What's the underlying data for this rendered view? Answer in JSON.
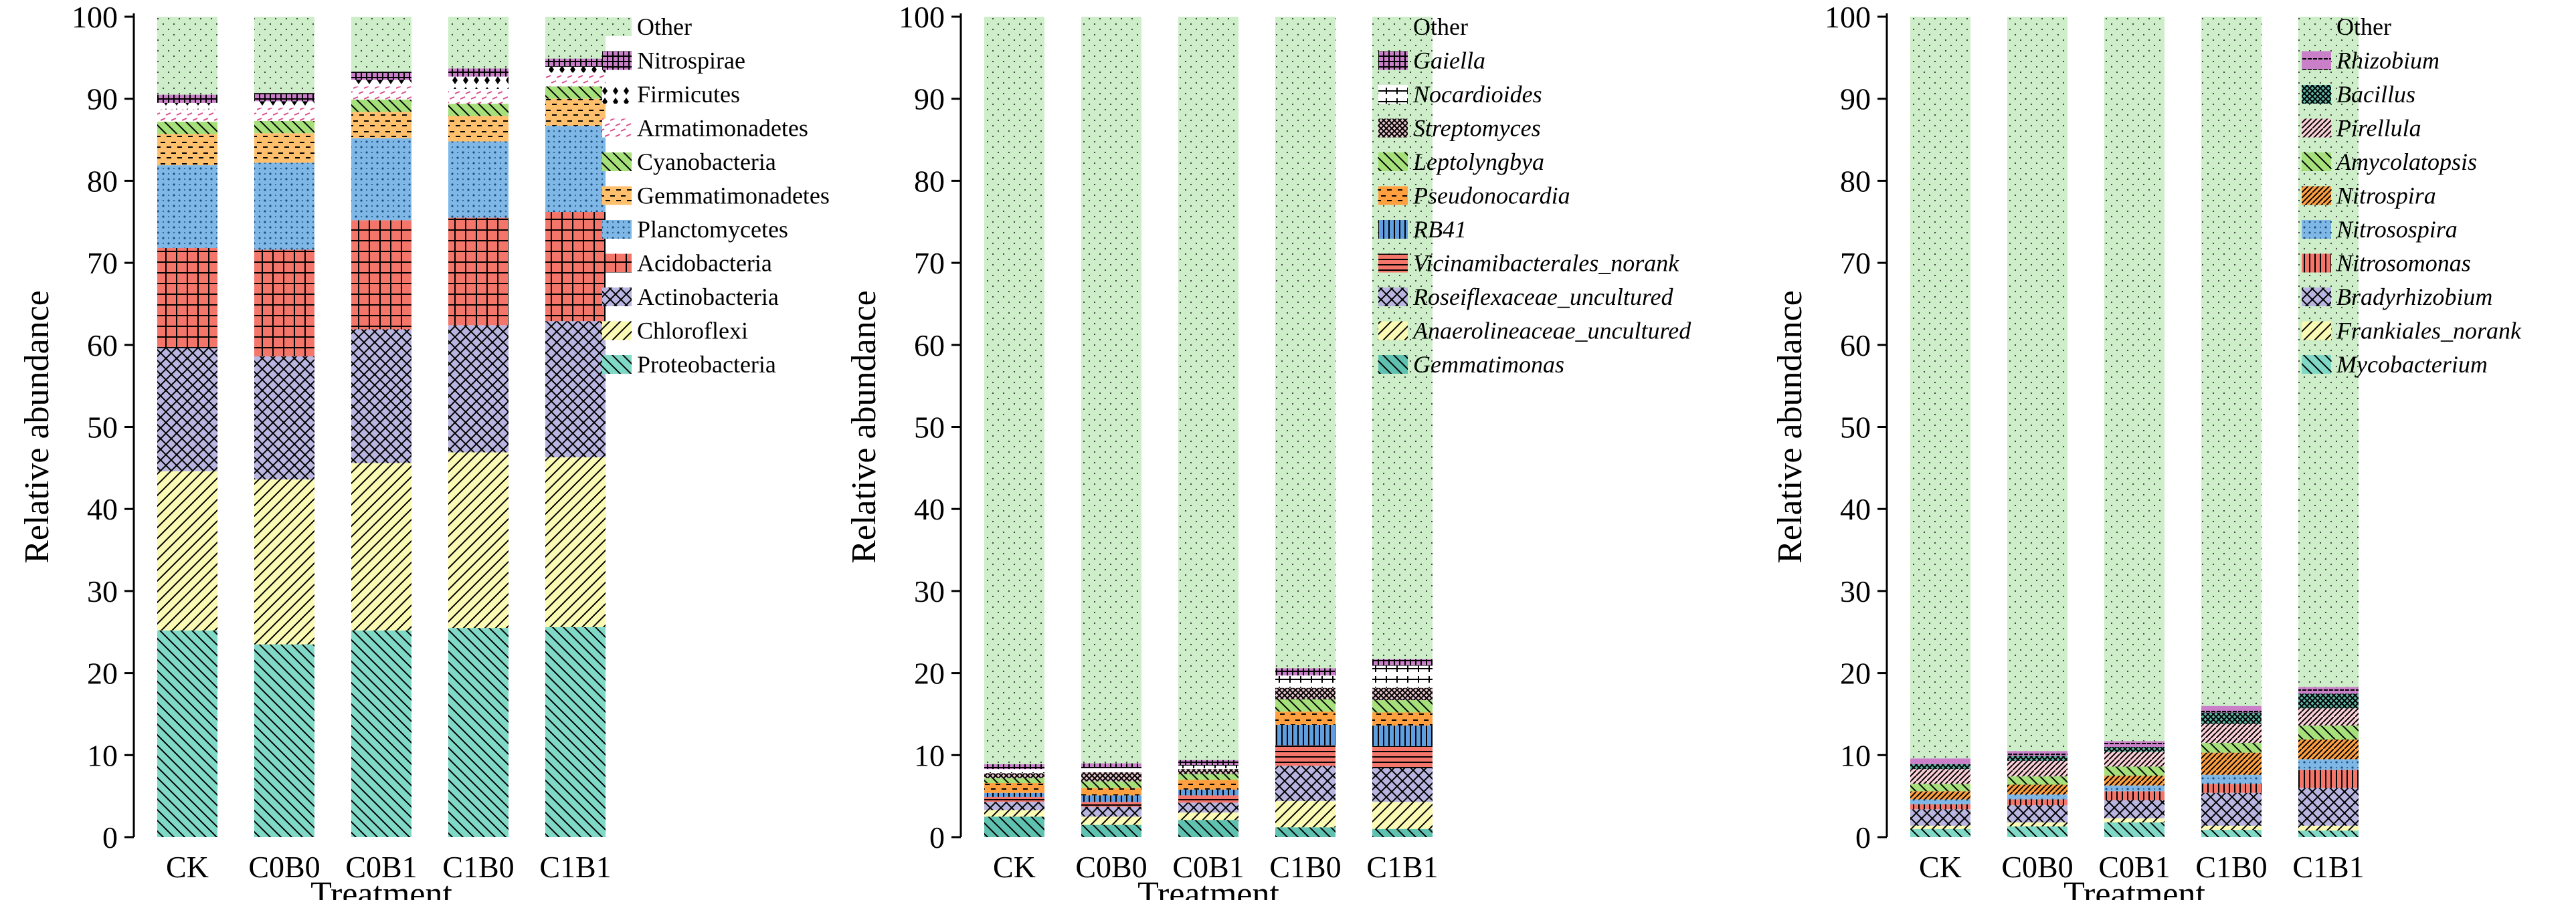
{
  "patterns": {
    "Other": {
      "fill": "#cdeec8",
      "pattern": "dots"
    },
    "Nitrospirae": {
      "fill": "#c980c9",
      "pattern": "grid-dense"
    },
    "Firmicutes": {
      "fill": "#ffffff",
      "pattern": "diamonds"
    },
    "Armatimonadetes": {
      "fill": "#ffffff",
      "pattern": "dash-pink"
    },
    "Cyanobacteria": {
      "fill": "#a6e07a",
      "pattern": "diag-left-dense"
    },
    "Gemmatimonadetes": {
      "fill": "#ffc06e",
      "pattern": "hdash"
    },
    "Planctomycetes": {
      "fill": "#7fb8e6",
      "pattern": "dots-dark"
    },
    "Acidobacteria": {
      "fill": "#f4756a",
      "pattern": "grid"
    },
    "Actinobacteria": {
      "fill": "#b8b5e0",
      "pattern": "crosshatch"
    },
    "Chloroflexi": {
      "fill": "#fbfab4",
      "pattern": "diag-right"
    },
    "Proteobacteria": {
      "fill": "#7fd9c6",
      "pattern": "diag-left"
    },
    "Gaiella": {
      "fill": "#c980c9",
      "pattern": "grid-dense"
    },
    "Nocardioides": {
      "fill": "#ffffff",
      "pattern": "hbar-cross"
    },
    "Streptomyces": {
      "fill": "#e8c4cc",
      "pattern": "crosshatch-dense"
    },
    "Leptolyngbya": {
      "fill": "#a6e07a",
      "pattern": "diag-left-dense"
    },
    "Pseudonocardia": {
      "fill": "#ffa040",
      "pattern": "hdash"
    },
    "RB41": {
      "fill": "#5f9ee0",
      "pattern": "vbars"
    },
    "Vicinamibacterales_norank": {
      "fill": "#f4756a",
      "pattern": "hbars-dense"
    },
    "Roseiflexaceae_uncultured": {
      "fill": "#b8b5e0",
      "pattern": "crosshatch"
    },
    "Anaerolineaceae_uncultured": {
      "fill": "#fbfab4",
      "pattern": "diag-right"
    },
    "Gemmatimonas": {
      "fill": "#5fc2b0",
      "pattern": "diag-left"
    },
    "Rhizobium": {
      "fill": "#c980c9",
      "pattern": "hdash-dark"
    },
    "Bacillus": {
      "fill": "#5fb8a8",
      "pattern": "crosshatch-dense"
    },
    "Pirellula": {
      "fill": "#fbd0d8",
      "pattern": "diag-right-dense"
    },
    "Amycolatopsis": {
      "fill": "#a6e07a",
      "pattern": "diag-left-dense"
    },
    "Nitrospira": {
      "fill": "#ffa040",
      "pattern": "diag-right-dense"
    },
    "Nitrosospira": {
      "fill": "#7fb8e6",
      "pattern": "dots-dark"
    },
    "Nitrosomonas": {
      "fill": "#f4756a",
      "pattern": "vbars"
    },
    "Bradyrhizobium": {
      "fill": "#b8b5e0",
      "pattern": "crosshatch"
    },
    "Frankiales_norank": {
      "fill": "#fbfab4",
      "pattern": "diag-right"
    },
    "Mycobacterium": {
      "fill": "#7fd9c6",
      "pattern": "diag-left"
    }
  },
  "chart_data": [
    {
      "type": "bar",
      "stacked": true,
      "title": "",
      "xlabel": "Treatment",
      "ylabel": "Relative abundance",
      "ylim": [
        0,
        100
      ],
      "yticks": [
        0,
        10,
        20,
        30,
        40,
        50,
        60,
        70,
        80,
        90,
        100
      ],
      "categories": [
        "CK",
        "C0B0",
        "C0B1",
        "C1B0",
        "C1B1"
      ],
      "legend_position": "right",
      "legend_italic": false,
      "series": [
        {
          "name": "Proteobacteria",
          "values": [
            25.2,
            23.5,
            25.2,
            25.5,
            25.6
          ]
        },
        {
          "name": "Chloroflexi",
          "values": [
            19.4,
            20.1,
            20.4,
            21.4,
            20.7
          ]
        },
        {
          "name": "Actinobacteria",
          "values": [
            15.0,
            15.0,
            16.3,
            15.5,
            16.6
          ]
        },
        {
          "name": "Acidobacteria",
          "values": [
            12.2,
            13.0,
            13.3,
            13.1,
            13.3
          ]
        },
        {
          "name": "Planctomycetes",
          "values": [
            10.1,
            10.6,
            10.0,
            9.3,
            10.5
          ]
        },
        {
          "name": "Gemmatimonadetes",
          "values": [
            3.8,
            3.6,
            3.2,
            3.1,
            3.3
          ]
        },
        {
          "name": "Cyanobacteria",
          "values": [
            1.5,
            1.5,
            1.5,
            1.5,
            1.5
          ]
        },
        {
          "name": "Armatimonadetes",
          "values": [
            1.5,
            1.6,
            1.6,
            1.8,
            1.7
          ]
        },
        {
          "name": "Firmicutes",
          "values": [
            0.8,
            0.8,
            0.8,
            1.5,
            0.7
          ]
        },
        {
          "name": "Nitrospirae",
          "values": [
            1.0,
            1.0,
            1.0,
            1.0,
            1.0
          ]
        },
        {
          "name": "Other",
          "values": [
            9.5,
            9.3,
            6.7,
            6.3,
            5.1
          ]
        }
      ]
    },
    {
      "type": "bar",
      "stacked": true,
      "title": "",
      "xlabel": "Treatment",
      "ylabel": "Relative abundance",
      "ylim": [
        0,
        100
      ],
      "yticks": [
        0,
        10,
        20,
        30,
        40,
        50,
        60,
        70,
        80,
        90,
        100
      ],
      "categories": [
        "CK",
        "C0B0",
        "C0B1",
        "C1B0",
        "C1B1"
      ],
      "legend_position": "right",
      "legend_italic": true,
      "series": [
        {
          "name": "Gemmatimonas",
          "values": [
            2.5,
            1.5,
            2.1,
            1.2,
            1.0
          ]
        },
        {
          "name": "Anaerolineaceae_uncultured",
          "values": [
            0.8,
            1.0,
            0.9,
            3.2,
            3.3
          ]
        },
        {
          "name": "Roseiflexaceae_uncultured",
          "values": [
            1.0,
            1.2,
            1.2,
            4.3,
            4.1
          ]
        },
        {
          "name": "Vicinamibacterales_norank",
          "values": [
            0.6,
            0.6,
            0.9,
            2.5,
            2.7
          ]
        },
        {
          "name": "RB41",
          "values": [
            0.5,
            0.8,
            0.7,
            2.5,
            2.5
          ]
        },
        {
          "name": "Pseudonocardia",
          "values": [
            1.2,
            0.9,
            1.2,
            1.6,
            1.6
          ]
        },
        {
          "name": "Leptolyngbya",
          "values": [
            0.6,
            0.8,
            0.7,
            1.5,
            1.5
          ]
        },
        {
          "name": "Streptomyces",
          "values": [
            0.6,
            1.1,
            0.6,
            1.4,
            1.5
          ]
        },
        {
          "name": "Nocardioides",
          "values": [
            0.5,
            0.5,
            0.5,
            1.5,
            2.7
          ]
        },
        {
          "name": "Gaiella",
          "values": [
            0.6,
            0.6,
            0.6,
            0.9,
            0.8
          ]
        },
        {
          "name": "Other",
          "values": [
            91.1,
            91.0,
            90.6,
            79.4,
            78.3
          ]
        }
      ]
    },
    {
      "type": "bar",
      "stacked": true,
      "title": "",
      "xlabel": "Treatment",
      "ylabel": "Relative abundance",
      "ylim": [
        0,
        100
      ],
      "yticks": [
        0,
        10,
        20,
        30,
        40,
        50,
        60,
        70,
        80,
        90,
        100
      ],
      "categories": [
        "CK",
        "C0B0",
        "C0B1",
        "C1B0",
        "C1B1"
      ],
      "legend_position": "right",
      "legend_italic": true,
      "series": [
        {
          "name": "Mycobacterium",
          "values": [
            1.0,
            1.3,
            1.8,
            0.9,
            0.8
          ]
        },
        {
          "name": "Frankiales_norank",
          "values": [
            0.4,
            0.5,
            0.5,
            0.5,
            0.6
          ]
        },
        {
          "name": "Bradyrhizobium",
          "values": [
            2.0,
            2.1,
            2.2,
            4.0,
            4.6
          ]
        },
        {
          "name": "Nitrosomonas",
          "values": [
            0.6,
            0.7,
            1.1,
            1.1,
            2.2
          ]
        },
        {
          "name": "Nitrosospira",
          "values": [
            0.6,
            0.6,
            0.7,
            1.1,
            1.3
          ]
        },
        {
          "name": "Nitrospira",
          "values": [
            1.0,
            1.2,
            1.2,
            2.7,
            2.4
          ]
        },
        {
          "name": "Amycolatopsis",
          "values": [
            0.9,
            1.0,
            1.1,
            1.2,
            1.7
          ]
        },
        {
          "name": "Pirellula",
          "values": [
            1.8,
            1.9,
            1.8,
            2.3,
            2.1
          ]
        },
        {
          "name": "Bacillus",
          "values": [
            0.6,
            0.6,
            0.6,
            1.4,
            1.8
          ]
        },
        {
          "name": "Rhizobium",
          "values": [
            0.7,
            0.6,
            0.7,
            0.8,
            0.8
          ]
        },
        {
          "name": "Other",
          "values": [
            90.4,
            89.5,
            88.3,
            84.0,
            81.7
          ]
        }
      ]
    }
  ]
}
